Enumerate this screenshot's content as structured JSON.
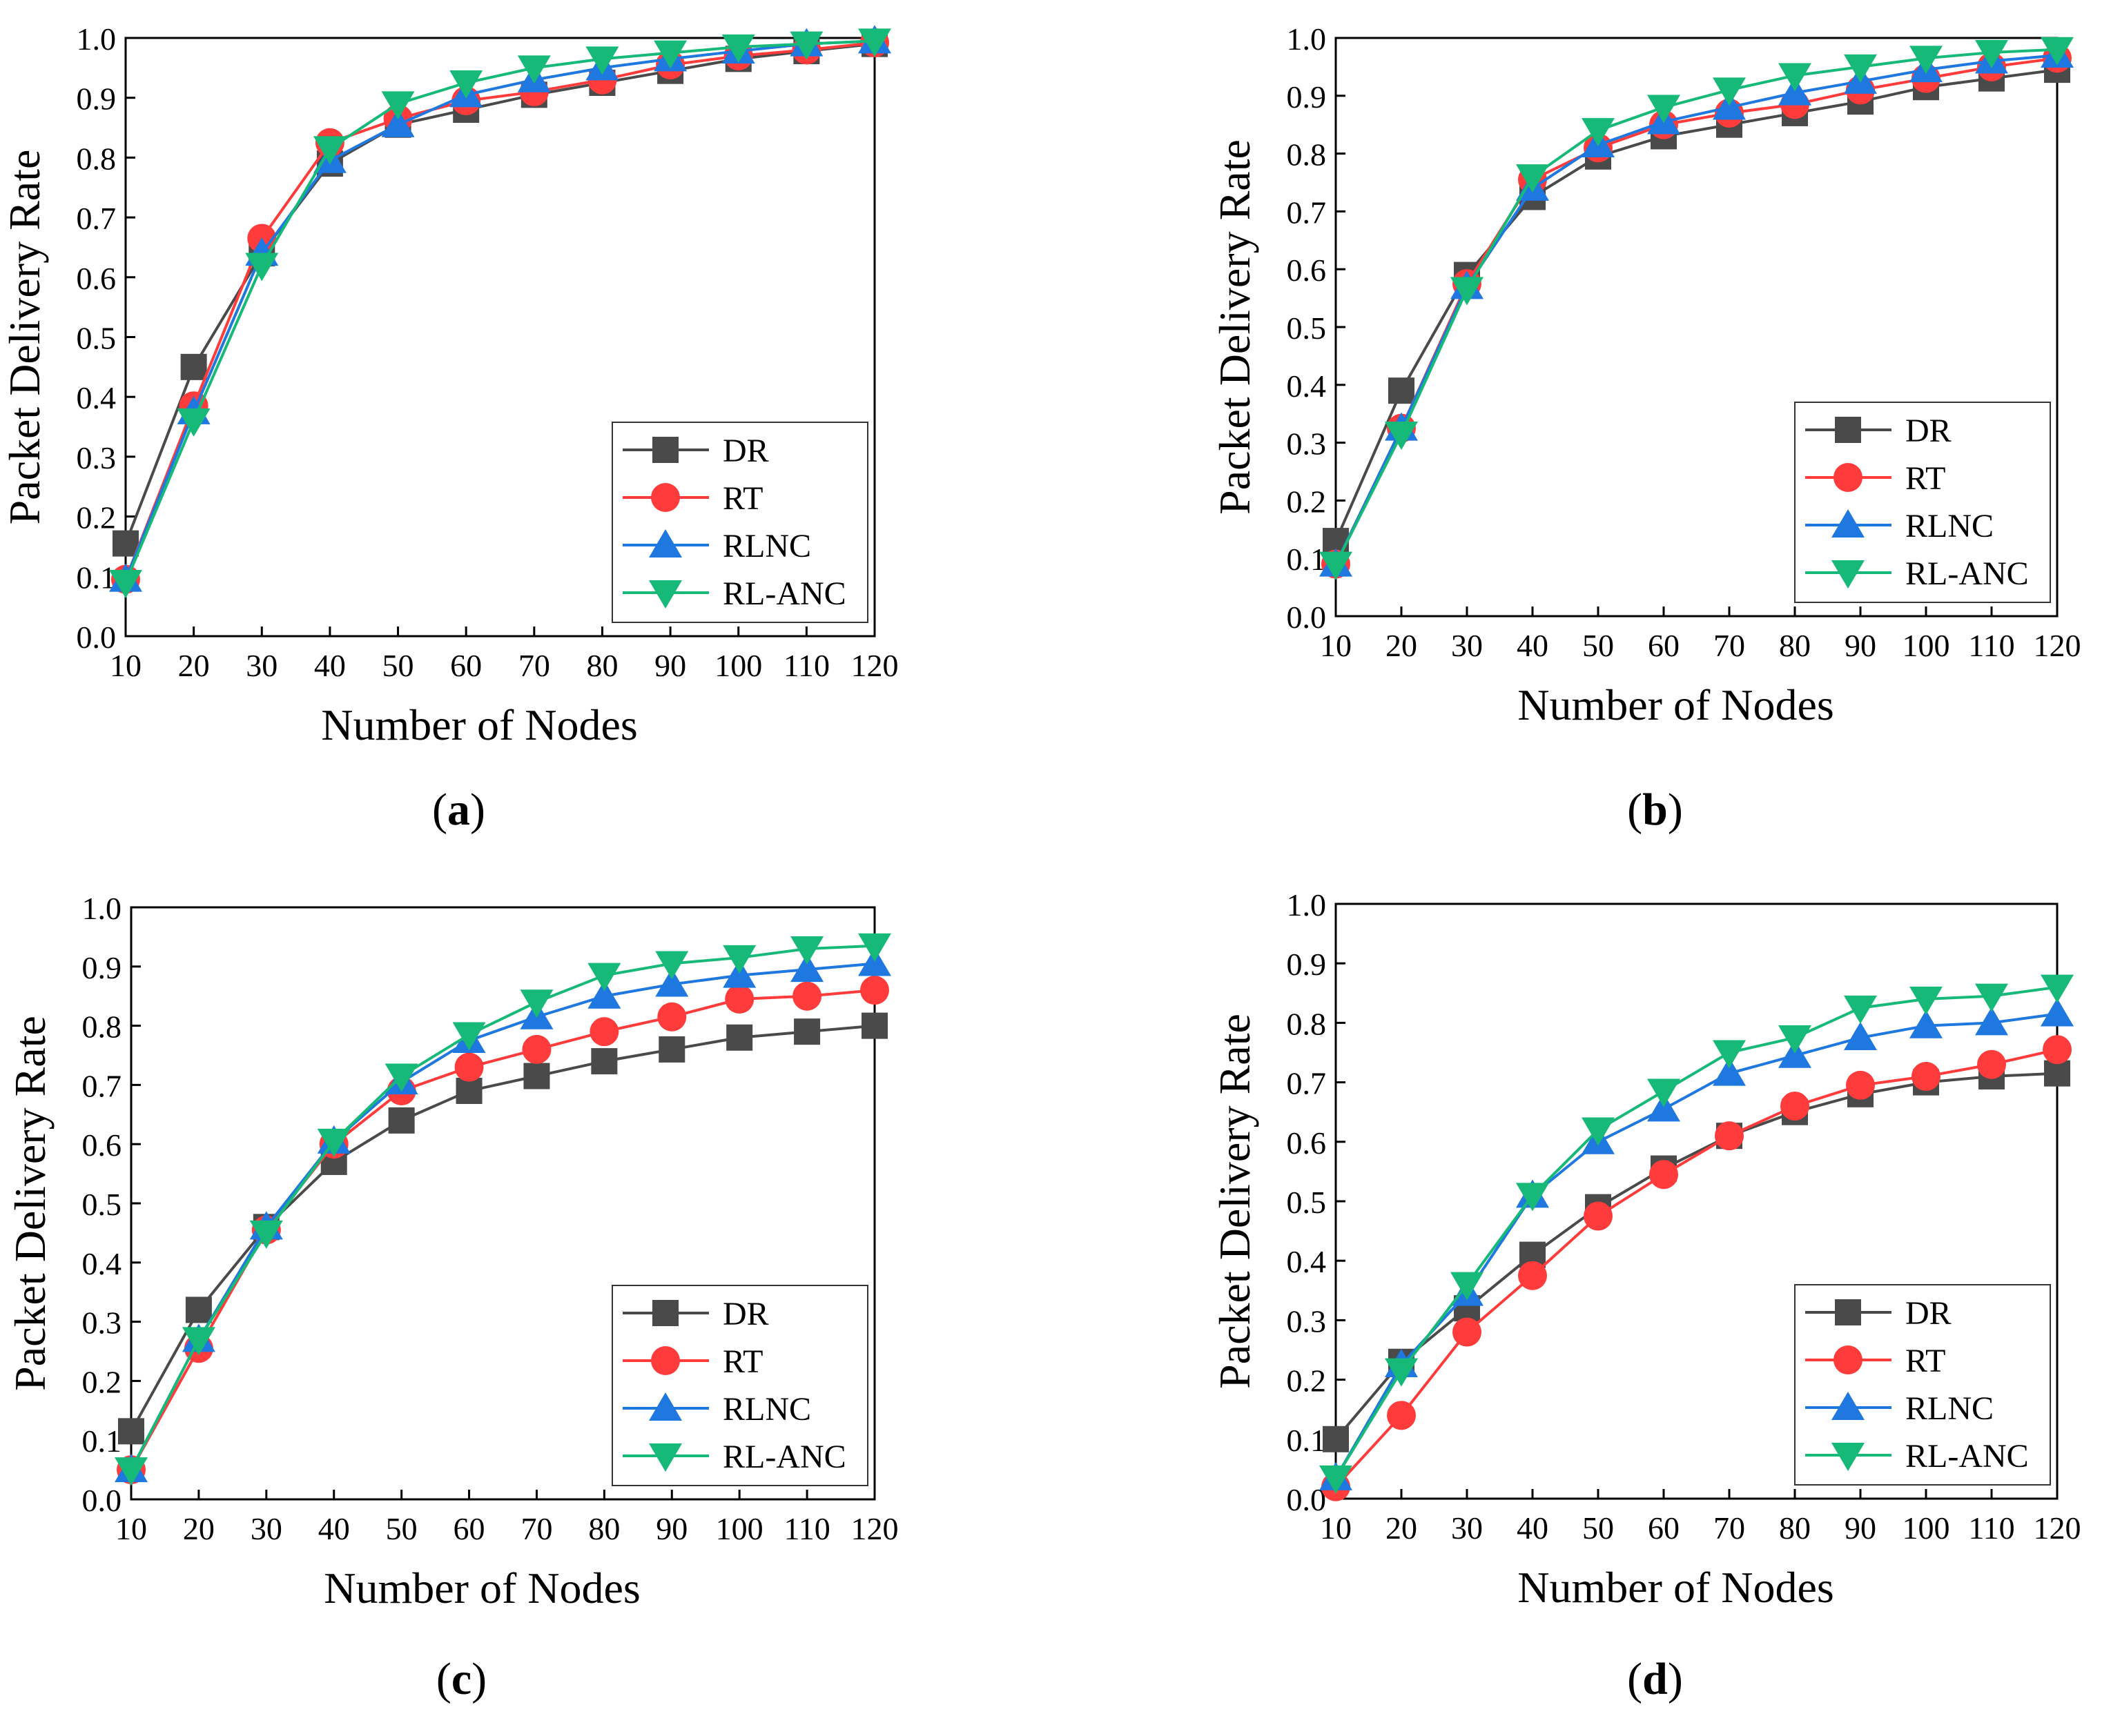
{
  "colors": {
    "DR": "#4a4a4a",
    "RT": "#ff3b3b",
    "RLNC": "#1f77e0",
    "RL-ANC": "#17b978",
    "axis": "#000000",
    "background": "#ffffff"
  },
  "marker_shapes": {
    "DR": "square",
    "RT": "circle",
    "RLNC": "triangle-up",
    "RL-ANC": "triangle-down"
  },
  "chart_data": [
    {
      "panel": "a",
      "caption_open": "(",
      "caption_letter": "a",
      "caption_close": ")",
      "type": "line",
      "title": "",
      "xlabel": "Number of Nodes",
      "ylabel": "Packet Delivery Rate",
      "x": [
        10,
        20,
        30,
        40,
        50,
        60,
        70,
        80,
        90,
        100,
        110,
        120
      ],
      "xticks": [
        10,
        20,
        30,
        40,
        50,
        60,
        70,
        80,
        90,
        100,
        110,
        120
      ],
      "xlim": [
        10,
        120
      ],
      "ylim": [
        0.0,
        1.0
      ],
      "yticks": [
        "0.0",
        "0.1",
        "0.2",
        "0.3",
        "0.4",
        "0.5",
        "0.6",
        "0.7",
        "0.8",
        "0.9",
        "1.0"
      ],
      "legend_position": "bottom-right",
      "series": [
        {
          "name": "DR",
          "values": [
            0.155,
            0.45,
            0.64,
            0.79,
            0.855,
            0.88,
            0.905,
            0.925,
            0.945,
            0.965,
            0.978,
            0.99
          ]
        },
        {
          "name": "RT",
          "values": [
            0.095,
            0.385,
            0.665,
            0.825,
            0.865,
            0.895,
            0.91,
            0.93,
            0.955,
            0.97,
            0.98,
            0.992
          ]
        },
        {
          "name": "RLNC",
          "values": [
            0.095,
            0.375,
            0.64,
            0.795,
            0.855,
            0.905,
            0.93,
            0.95,
            0.965,
            0.978,
            0.99,
            0.995
          ]
        },
        {
          "name": "RL-ANC",
          "values": [
            0.09,
            0.36,
            0.62,
            0.815,
            0.89,
            0.925,
            0.95,
            0.965,
            0.975,
            0.985,
            0.99,
            0.995
          ]
        }
      ]
    },
    {
      "panel": "b",
      "caption_open": "(",
      "caption_letter": "b",
      "caption_close": ")",
      "type": "line",
      "title": "",
      "xlabel": "Number of Nodes",
      "ylabel": "Packet Delivery Rate",
      "x": [
        10,
        20,
        30,
        40,
        50,
        60,
        70,
        80,
        90,
        100,
        110,
        120
      ],
      "xticks": [
        10,
        20,
        30,
        40,
        50,
        60,
        70,
        80,
        90,
        100,
        110,
        120
      ],
      "xlim": [
        10,
        120
      ],
      "ylim": [
        0.0,
        1.0
      ],
      "yticks": [
        "0.0",
        "0.1",
        "0.2",
        "0.3",
        "0.4",
        "0.5",
        "0.6",
        "0.7",
        "0.8",
        "0.9",
        "1.0"
      ],
      "legend_position": "bottom-right",
      "series": [
        {
          "name": "DR",
          "values": [
            0.13,
            0.39,
            0.59,
            0.725,
            0.795,
            0.83,
            0.85,
            0.87,
            0.89,
            0.915,
            0.93,
            0.945
          ]
        },
        {
          "name": "RT",
          "values": [
            0.09,
            0.325,
            0.575,
            0.755,
            0.81,
            0.85,
            0.87,
            0.885,
            0.91,
            0.93,
            0.95,
            0.965
          ]
        },
        {
          "name": "RLNC",
          "values": [
            0.09,
            0.325,
            0.57,
            0.74,
            0.815,
            0.855,
            0.88,
            0.905,
            0.925,
            0.945,
            0.96,
            0.97
          ]
        },
        {
          "name": "RL-ANC",
          "values": [
            0.09,
            0.315,
            0.565,
            0.76,
            0.84,
            0.88,
            0.91,
            0.935,
            0.95,
            0.965,
            0.975,
            0.98
          ]
        }
      ]
    },
    {
      "panel": "c",
      "caption_open": "(",
      "caption_letter": "c",
      "caption_close": ")",
      "type": "line",
      "title": "",
      "xlabel": "Number of Nodes",
      "ylabel": "Packet Delivery Rate",
      "x": [
        10,
        20,
        30,
        40,
        50,
        60,
        70,
        80,
        90,
        100,
        110,
        120
      ],
      "xticks": [
        10,
        20,
        30,
        40,
        50,
        60,
        70,
        80,
        90,
        100,
        110,
        120
      ],
      "xlim": [
        10,
        120
      ],
      "ylim": [
        0.0,
        1.0
      ],
      "yticks": [
        "0.0",
        "0.1",
        "0.2",
        "0.3",
        "0.4",
        "0.5",
        "0.6",
        "0.7",
        "0.8",
        "0.9",
        "1.0"
      ],
      "legend_position": "bottom-right",
      "series": [
        {
          "name": "DR",
          "values": [
            0.115,
            0.32,
            0.46,
            0.57,
            0.64,
            0.69,
            0.715,
            0.74,
            0.76,
            0.78,
            0.79,
            0.8
          ]
        },
        {
          "name": "RT",
          "values": [
            0.05,
            0.255,
            0.455,
            0.6,
            0.69,
            0.73,
            0.76,
            0.79,
            0.815,
            0.845,
            0.85,
            0.86
          ]
        },
        {
          "name": "RLNC",
          "values": [
            0.05,
            0.27,
            0.46,
            0.605,
            0.705,
            0.775,
            0.815,
            0.85,
            0.87,
            0.885,
            0.895,
            0.905
          ]
        },
        {
          "name": "RL-ANC",
          "values": [
            0.05,
            0.27,
            0.45,
            0.605,
            0.715,
            0.785,
            0.84,
            0.885,
            0.905,
            0.915,
            0.93,
            0.935
          ]
        }
      ]
    },
    {
      "panel": "d",
      "caption_open": "(",
      "caption_letter": "d",
      "caption_close": ")",
      "type": "line",
      "title": "",
      "xlabel": "Number of Nodes",
      "ylabel": "Packet Delivery Rate",
      "x": [
        10,
        20,
        30,
        40,
        50,
        60,
        70,
        80,
        90,
        100,
        110,
        120
      ],
      "xticks": [
        10,
        20,
        30,
        40,
        50,
        60,
        70,
        80,
        90,
        100,
        110,
        120
      ],
      "xlim": [
        10,
        120
      ],
      "ylim": [
        0.0,
        1.0
      ],
      "yticks": [
        "0.0",
        "0.1",
        "0.2",
        "0.3",
        "0.4",
        "0.5",
        "0.6",
        "0.7",
        "0.8",
        "0.9",
        "1.0"
      ],
      "legend_position": "bottom-right",
      "series": [
        {
          "name": "DR",
          "values": [
            0.1,
            0.23,
            0.32,
            0.41,
            0.49,
            0.555,
            0.61,
            0.65,
            0.68,
            0.7,
            0.71,
            0.715
          ]
        },
        {
          "name": "RT",
          "values": [
            0.02,
            0.14,
            0.28,
            0.375,
            0.475,
            0.545,
            0.61,
            0.66,
            0.695,
            0.71,
            0.73,
            0.755
          ]
        },
        {
          "name": "RLNC",
          "values": [
            0.035,
            0.225,
            0.345,
            0.51,
            0.6,
            0.655,
            0.715,
            0.745,
            0.775,
            0.795,
            0.8,
            0.815
          ]
        },
        {
          "name": "RL-ANC",
          "values": [
            0.035,
            0.215,
            0.36,
            0.51,
            0.62,
            0.685,
            0.75,
            0.775,
            0.825,
            0.84,
            0.845,
            0.86
          ]
        }
      ]
    }
  ]
}
